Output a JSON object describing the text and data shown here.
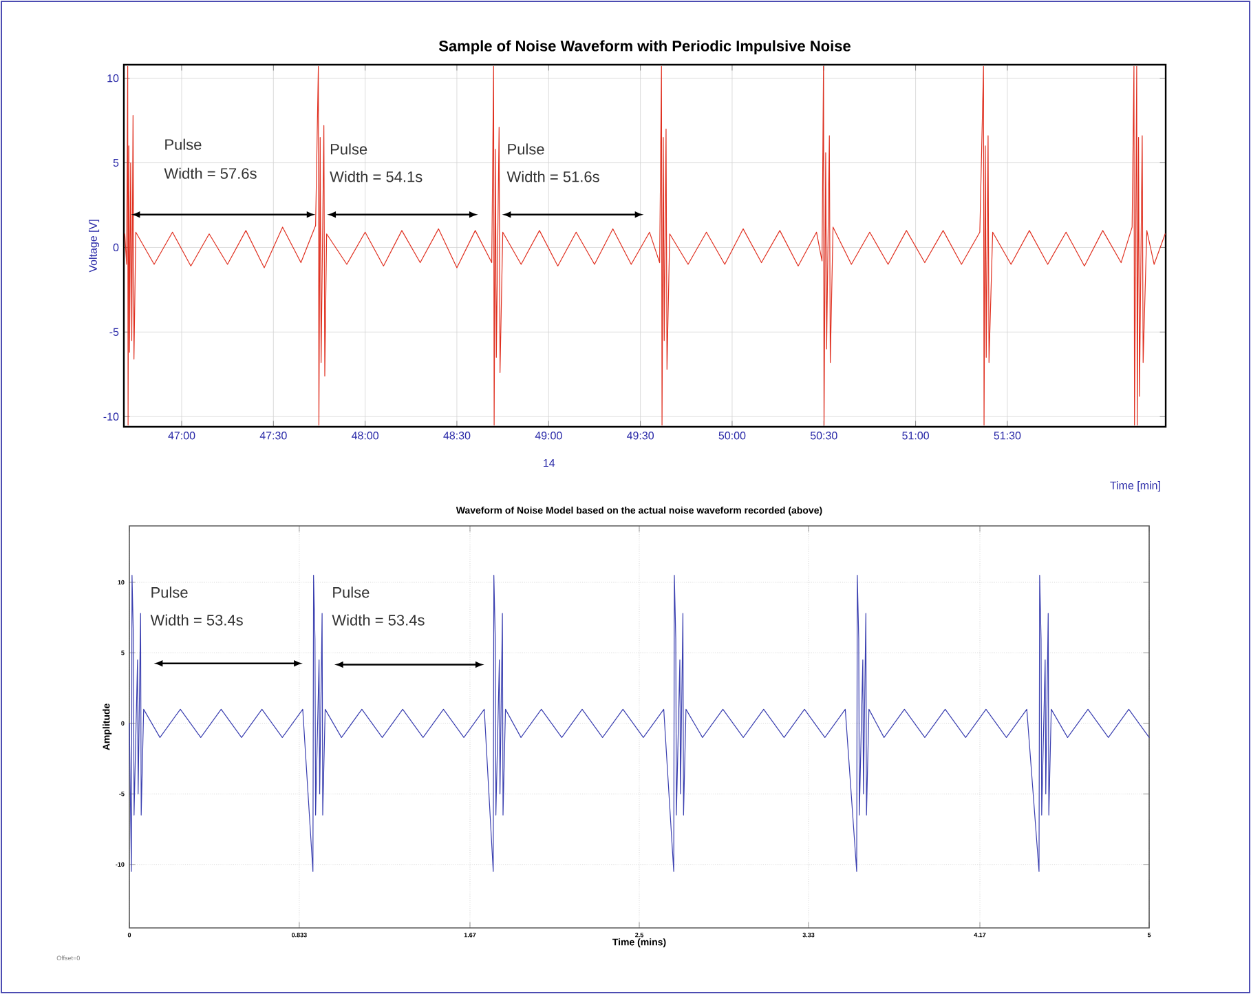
{
  "chart_data": [
    {
      "type": "line",
      "title": "Sample of Noise Waveform with Periodic Impulsive Noise",
      "ylabel": "Voltage [V]",
      "xlabel": "Time [min]",
      "xlim": [
        46.685,
        52.363
      ],
      "ylim": [
        -10.6,
        10.8
      ],
      "xticks": [
        {
          "value": 47,
          "label": "47:00"
        },
        {
          "value": 47.5,
          "label": "47:30"
        },
        {
          "value": 48,
          "label": "48:00"
        },
        {
          "value": 48.5,
          "label": "48:30"
        },
        {
          "value": 49,
          "label": "49:00"
        },
        {
          "value": 49.5,
          "label": "49:30"
        },
        {
          "value": 50,
          "label": "50:00"
        },
        {
          "value": 50.5,
          "label": "50:30"
        },
        {
          "value": 51,
          "label": "51:00"
        },
        {
          "value": 51.5,
          "label": "51:30"
        }
      ],
      "yticks": [
        -10,
        -5,
        0,
        5,
        10
      ],
      "grid": true,
      "series": [
        {
          "color": "#e03020",
          "x": [
            46.69,
            46.7,
            46.706,
            46.708,
            46.712,
            46.716,
            46.722,
            46.728,
            46.735,
            46.74,
            46.75,
            46.85,
            46.95,
            47.05,
            47.15,
            47.25,
            47.35,
            47.45,
            47.55,
            47.65,
            47.73,
            47.745,
            47.748,
            47.755,
            47.76,
            47.775,
            47.78,
            47.79,
            47.9,
            48.0,
            48.1,
            48.2,
            48.3,
            48.4,
            48.5,
            48.6,
            48.69,
            48.7,
            48.703,
            48.71,
            48.715,
            48.73,
            48.735,
            48.75,
            48.85,
            48.95,
            49.05,
            49.15,
            49.25,
            49.35,
            49.45,
            49.55,
            49.605,
            49.615,
            49.618,
            49.625,
            49.63,
            49.64,
            49.645,
            49.66,
            49.76,
            49.86,
            49.96,
            50.06,
            50.16,
            50.26,
            50.36,
            50.46,
            50.49,
            50.498,
            50.501,
            50.51,
            50.515,
            50.53,
            50.535,
            50.55,
            50.65,
            50.75,
            50.85,
            50.95,
            51.05,
            51.15,
            51.25,
            51.35,
            51.37,
            51.373,
            51.38,
            51.385,
            51.395,
            51.4,
            51.42,
            51.52,
            51.62,
            51.72,
            51.82,
            51.92,
            52.02,
            52.12,
            52.18,
            52.19,
            52.193,
            52.205,
            52.208,
            52.215,
            52.22,
            52.235,
            52.24,
            52.26,
            52.3,
            52.36
          ],
          "values": [
            0.8,
            -1,
            10.7,
            -10.5,
            6,
            -6.2,
            5,
            -5.5,
            7.8,
            -6.6,
            0.9,
            -1.0,
            0.9,
            -1.1,
            0.8,
            -1.0,
            1.0,
            -1.2,
            1.2,
            -0.9,
            1.3,
            10.7,
            -10.5,
            6.5,
            -6.8,
            7.2,
            -7.6,
            0.8,
            -1.0,
            0.9,
            -1.1,
            1.0,
            -0.9,
            1.1,
            -1.2,
            1.0,
            -0.9,
            10.7,
            -10.5,
            5.8,
            -6.5,
            7.1,
            -7.4,
            0.9,
            -1.0,
            1.0,
            -1.1,
            0.9,
            -1.0,
            1.1,
            -1.0,
            0.9,
            -0.9,
            10.7,
            -10.5,
            6.5,
            -5.5,
            7.0,
            -7.2,
            0.8,
            -1.0,
            0.9,
            -1.0,
            1.1,
            -0.9,
            1.0,
            -1.1,
            0.9,
            -0.8,
            10.7,
            -10.5,
            5.6,
            -6.0,
            6.6,
            -6.8,
            1.2,
            -1.0,
            0.9,
            -1.0,
            1.0,
            -0.9,
            1.0,
            -1.0,
            0.9,
            10.7,
            -10.5,
            6.0,
            -6.5,
            6.6,
            -6.8,
            0.9,
            -1.0,
            1.0,
            -1.0,
            0.9,
            -1.1,
            1.0,
            -0.9,
            1.2,
            10.7,
            -10.5,
            10.7,
            -10.5,
            6.5,
            -8.8,
            6.6,
            -6.8,
            1.0,
            -1.0,
            0.8
          ]
        }
      ],
      "annotations": [
        "Pulse",
        "Width = 57.6s",
        "Pulse",
        "Width = 54.1s",
        "Pulse",
        "Width = 51.6s",
        "14"
      ]
    },
    {
      "type": "line",
      "title": "Waveform of Noise Model based on the actual noise waveform recorded (above)",
      "ylabel": "Amplitude",
      "xlabel": "Time (mins)",
      "xlim": [
        0,
        5
      ],
      "ylim": [
        -14.5,
        14
      ],
      "xticks": [
        0,
        0.833,
        1.67,
        2.5,
        3.33,
        4.17,
        5
      ],
      "yticks": [
        -10,
        -5,
        0,
        5,
        10
      ],
      "grid": true,
      "series": [
        {
          "color": "#3a3fb0",
          "x": [
            0,
            0.01,
            0.013,
            0.02,
            0.023,
            0.04,
            0.043,
            0.055,
            0.058,
            0.07,
            0.15,
            0.25,
            0.35,
            0.45,
            0.55,
            0.65,
            0.75,
            0.85,
            0.9,
            0.903,
            0.91,
            0.913,
            0.93,
            0.933,
            0.945,
            0.948,
            0.96,
            1.04,
            1.14,
            1.24,
            1.34,
            1.44,
            1.54,
            1.64,
            1.74,
            1.784,
            1.787,
            1.794,
            1.797,
            1.814,
            1.817,
            1.829,
            1.832,
            1.844,
            1.92,
            2.02,
            2.12,
            2.22,
            2.32,
            2.42,
            2.52,
            2.62,
            2.669,
            2.672,
            2.679,
            2.682,
            2.699,
            2.702,
            2.714,
            2.717,
            2.729,
            2.81,
            2.91,
            3.01,
            3.11,
            3.21,
            3.31,
            3.41,
            3.51,
            3.566,
            3.569,
            3.576,
            3.579,
            3.596,
            3.599,
            3.611,
            3.614,
            3.626,
            3.7,
            3.8,
            3.9,
            4.0,
            4.1,
            4.2,
            4.3,
            4.4,
            4.46,
            4.463,
            4.47,
            4.473,
            4.49,
            4.493,
            4.505,
            4.508,
            4.52,
            4.6,
            4.7,
            4.8,
            4.9,
            5.0
          ],
          "values": [
            0,
            -10.5,
            10.5,
            6,
            -6.5,
            4.5,
            -5,
            7.8,
            -6.5,
            1,
            -1,
            1,
            -1,
            1,
            -1,
            1,
            -1,
            1,
            -10.5,
            10.5,
            6,
            -6.5,
            4.5,
            -5,
            7.8,
            -6.5,
            1,
            -1,
            1,
            -1,
            1,
            -1,
            1,
            -1,
            1,
            -10.5,
            10.5,
            6,
            -6.5,
            4.5,
            -5,
            7.8,
            -6.5,
            1,
            -1,
            1,
            -1,
            1,
            -1,
            1,
            -1,
            1,
            -10.5,
            10.5,
            6,
            -6.5,
            4.5,
            -5,
            7.8,
            -6.5,
            1,
            -1,
            1,
            -1,
            1,
            -1,
            1,
            -1,
            1,
            -10.5,
            10.5,
            6,
            -6.5,
            4.5,
            -5,
            7.8,
            -6.5,
            1,
            -1,
            1,
            -1,
            1,
            -1,
            1,
            -1,
            1,
            -10.5,
            10.5,
            6,
            -6.5,
            4.5,
            -5,
            7.8,
            -6.5,
            1,
            -1,
            1,
            -1,
            1,
            -1
          ]
        }
      ],
      "annotations": [
        "Pulse",
        "Width = 53.4s",
        "Pulse",
        "Width = 53.4s",
        "Offset=0"
      ]
    }
  ]
}
